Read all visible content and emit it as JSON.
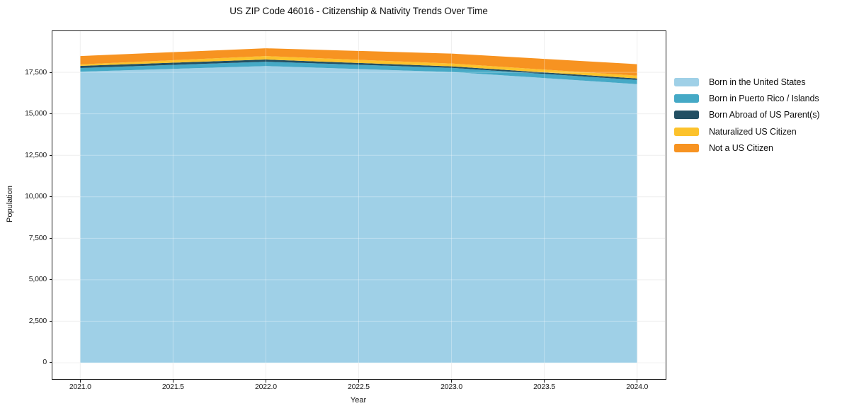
{
  "figure": {
    "title": "US ZIP Code 46016 - Citizenship & Nativity Trends Over Time",
    "background_color": "#ffffff",
    "spine_color": "#1b1b1b",
    "gridline_color": "#e9e9e9"
  },
  "chart_data": {
    "type": "area",
    "stacked": true,
    "title": "US ZIP Code 46016 - Citizenship & Nativity Trends Over Time",
    "xlabel": "Year",
    "ylabel": "Population",
    "x": [
      2021,
      2022,
      2023,
      2024
    ],
    "series": [
      {
        "name": "Born in the United States",
        "color": "#9fd0e7",
        "values": [
          17540,
          17880,
          17520,
          16790
        ]
      },
      {
        "name": "Born in Puerto Rico / Islands",
        "color": "#45a9c6",
        "values": [
          220,
          260,
          250,
          250
        ]
      },
      {
        "name": "Born Abroad of US Parent(s)",
        "color": "#224f63",
        "values": [
          130,
          130,
          90,
          90
        ]
      },
      {
        "name": "Naturalized US Citizen",
        "color": "#fcc22c",
        "values": [
          90,
          210,
          170,
          170
        ]
      },
      {
        "name": "Not a US Citizen",
        "color": "#f79321",
        "values": [
          500,
          470,
          600,
          690
        ]
      }
    ],
    "stack_totals": [
      18480,
      18950,
      18630,
      17990
    ],
    "xlim": [
      2020.85,
      2024.15
    ],
    "ylim": [
      -940,
      19980
    ],
    "xticks": [
      {
        "v": 2021.0,
        "label": "2021.0"
      },
      {
        "v": 2021.5,
        "label": "2021.5"
      },
      {
        "v": 2022.0,
        "label": "2022.0"
      },
      {
        "v": 2022.5,
        "label": "2022.5"
      },
      {
        "v": 2023.0,
        "label": "2023.0"
      },
      {
        "v": 2023.5,
        "label": "2023.5"
      },
      {
        "v": 2024.0,
        "label": "2024.0"
      }
    ],
    "yticks": [
      {
        "v": 0,
        "label": "0"
      },
      {
        "v": 2500,
        "label": "2,500"
      },
      {
        "v": 5000,
        "label": "5,000"
      },
      {
        "v": 7500,
        "label": "7,500"
      },
      {
        "v": 10000,
        "label": "10,000"
      },
      {
        "v": 12500,
        "label": "12,500"
      },
      {
        "v": 15000,
        "label": "15,000"
      },
      {
        "v": 17500,
        "label": "17,500"
      }
    ],
    "grid": true,
    "legend_position": "right-outside"
  }
}
